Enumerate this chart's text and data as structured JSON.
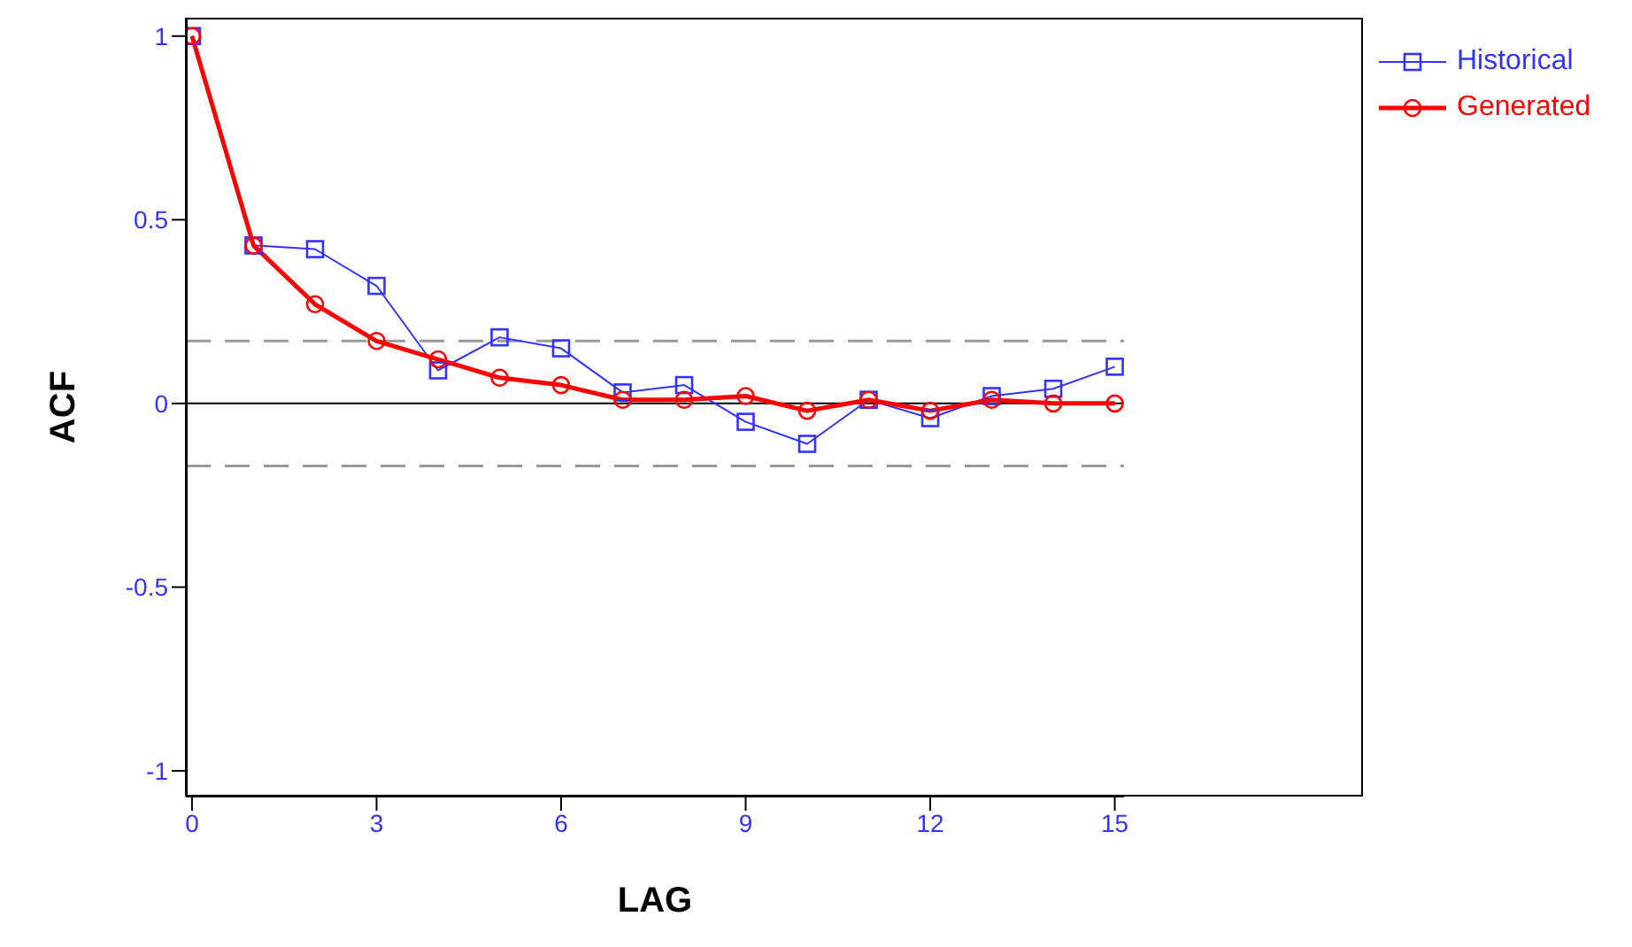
{
  "chart_data": {
    "type": "line",
    "xlabel": "LAG",
    "ylabel": "ACF",
    "x": [
      0,
      1,
      2,
      3,
      4,
      5,
      6,
      7,
      8,
      9,
      10,
      11,
      12,
      13,
      14,
      15
    ],
    "series": [
      {
        "name": "Historical",
        "color": "#3333ff",
        "marker": "square",
        "line_style": "solid",
        "values": [
          1,
          0.43,
          0.42,
          0.32,
          0.09,
          0.18,
          0.15,
          0.03,
          0.05,
          -0.05,
          -0.11,
          0.01,
          -0.04,
          0.02,
          0.04,
          0.1
        ]
      },
      {
        "name": "Generated",
        "color": "#ff0000",
        "marker": "circle",
        "line_style": "solid",
        "values": [
          1,
          0.43,
          0.27,
          0.17,
          0.12,
          0.07,
          0.05,
          0.01,
          0.01,
          0.02,
          -0.02,
          0.01,
          -0.02,
          0.01,
          0,
          0
        ]
      }
    ],
    "xlim": [
      -0.1,
      15.15
    ],
    "xticks": [
      0,
      3,
      6,
      9,
      12,
      15
    ],
    "ylim": [
      -1.07,
      1.05
    ],
    "yticks": [
      -1,
      -0.5,
      0,
      0.5,
      1
    ],
    "ref_lines": [
      {
        "axis": "y",
        "value": 0.17,
        "color": "#999999",
        "line_style": "dashed"
      },
      {
        "axis": "y",
        "value": -0.17,
        "color": "#999999",
        "line_style": "dashed"
      },
      {
        "axis": "y",
        "value": 0,
        "color": "#000000",
        "line_style": "solid"
      }
    ],
    "grid": false,
    "legend": "top right"
  }
}
